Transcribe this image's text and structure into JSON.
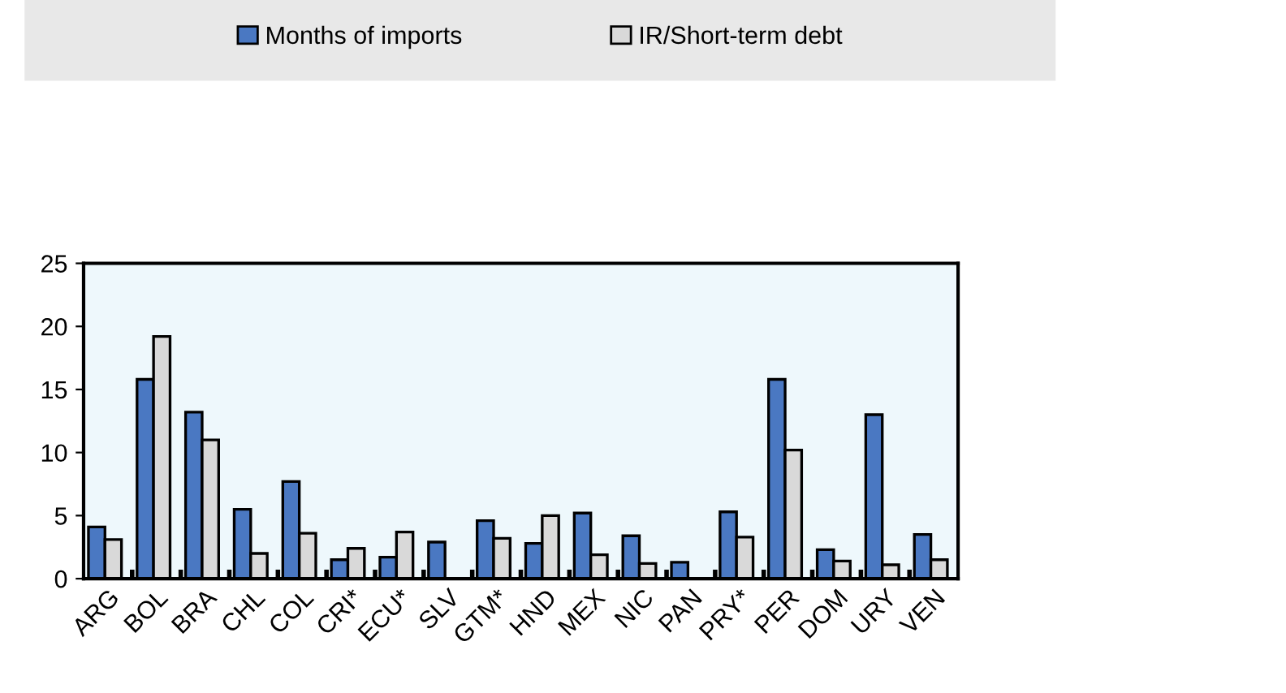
{
  "chart_data": {
    "type": "bar",
    "categories": [
      "ARG",
      "BOL",
      "BRA",
      "CHL",
      "COL",
      "CRI*",
      "ECU*",
      "SLV",
      "GTM*",
      "HND",
      "MEX",
      "NIC",
      "PAN",
      "PRY*",
      "PER",
      "DOM",
      "URY",
      "VEN"
    ],
    "series": [
      {
        "name": "Months of imports",
        "color": "#4a78c2",
        "values": [
          4.1,
          15.8,
          13.2,
          5.5,
          7.7,
          1.5,
          1.7,
          2.9,
          4.6,
          2.8,
          5.2,
          3.4,
          1.3,
          5.3,
          15.8,
          2.3,
          13.0,
          3.5
        ]
      },
      {
        "name": "IR/Short-term debt",
        "color": "#d9d9d9",
        "values": [
          3.1,
          19.2,
          11.0,
          2.0,
          3.6,
          2.4,
          3.7,
          null,
          3.2,
          5.0,
          1.9,
          1.2,
          null,
          3.3,
          10.2,
          1.4,
          1.1,
          1.5
        ]
      }
    ],
    "ylim": [
      0,
      25
    ],
    "yticks": [
      0,
      5,
      10,
      15,
      20,
      25
    ],
    "grid": false,
    "legend": "top"
  }
}
